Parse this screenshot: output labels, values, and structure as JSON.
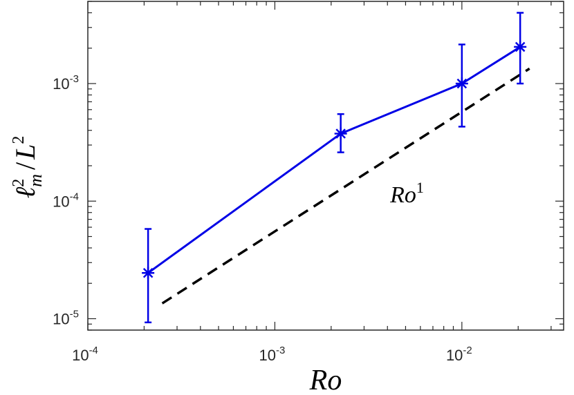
{
  "chart_data": {
    "type": "line",
    "title": "",
    "xlabel": "Ro",
    "ylabel_parts": {
      "l": "ℓ",
      "l_sup": "2",
      "l_sub": "m",
      "slash": "/",
      "L": "L",
      "L_sup": "2"
    },
    "xscale": "log",
    "yscale": "log",
    "xlim": [
      0.0001,
      0.035
    ],
    "ylim": [
      8e-06,
      0.005
    ],
    "x_ticks": [
      {
        "value": 0.0001,
        "base": "10",
        "exp": "-4"
      },
      {
        "value": 0.001,
        "base": "10",
        "exp": "-3"
      },
      {
        "value": 0.01,
        "base": "10",
        "exp": "-2"
      }
    ],
    "y_ticks": [
      {
        "value": 1e-05,
        "base": "10",
        "exp": "-5"
      },
      {
        "value": 0.0001,
        "base": "10",
        "exp": "-4"
      },
      {
        "value": 0.001,
        "base": "10",
        "exp": "-3"
      }
    ],
    "grid": false,
    "series": [
      {
        "color": "#0000e6",
        "marker": "asterisk",
        "x": [
          0.00021,
          0.00225,
          0.01,
          0.0205
        ],
        "y": [
          2.45e-05,
          0.000375,
          0.001,
          0.00205
        ],
        "err_low": [
          9.3e-06,
          0.00026,
          0.00043,
          0.001
        ],
        "err_high": [
          5.8e-05,
          0.00055,
          0.00215,
          0.004
        ]
      }
    ],
    "reference_line": {
      "color": "#000000",
      "style": "dashed",
      "x": [
        0.00025,
        0.023
      ],
      "y": [
        1.35e-05,
        0.00134
      ],
      "label_base": "Ro",
      "label_exp": "1",
      "label_pos": [
        0.0045,
        0.000115
      ]
    }
  }
}
